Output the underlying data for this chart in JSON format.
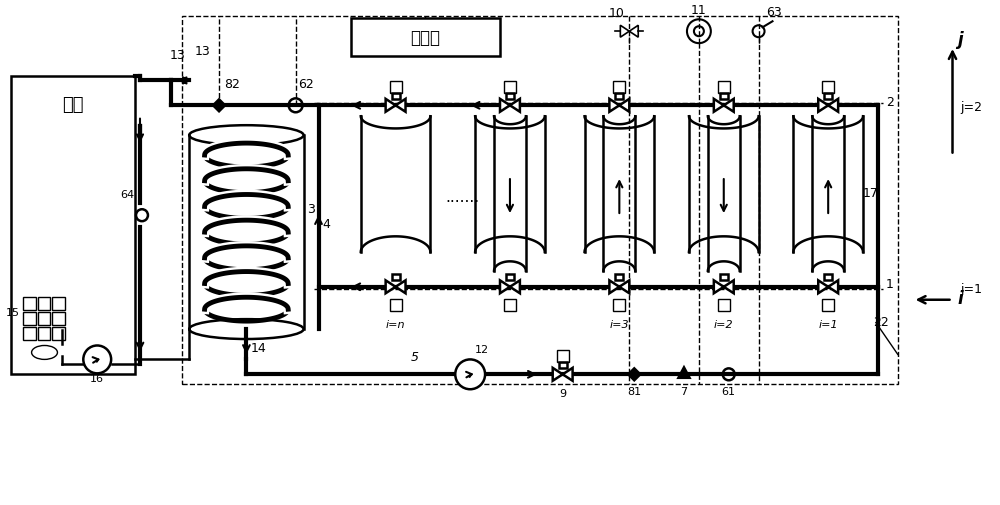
{
  "bg_color": "#ffffff",
  "line_color": "#000000",
  "thick_lw": 3.0,
  "med_lw": 1.8,
  "thin_lw": 1.0,
  "fig_width": 10.0,
  "fig_height": 5.06,
  "labels": {
    "yonghu": "用户",
    "kongzhibu": "控制部",
    "num_1": "1",
    "num_2": "2",
    "num_3": "3",
    "num_4": "4",
    "num_5": "5",
    "num_7": "7",
    "num_9": "9",
    "num_10": "10",
    "num_11": "11",
    "num_12": "12",
    "num_13": "13",
    "num_14": "14",
    "num_15": "15",
    "num_16": "16",
    "num_17": "17",
    "num_22": "22",
    "num_61": "61",
    "num_62": "62",
    "num_63": "63",
    "num_64": "64",
    "num_81": "81",
    "num_82": "82",
    "j_label": "j",
    "i_label": "i",
    "j1": "j=1",
    "j2": "j=2",
    "i1": "i=1",
    "i2": "i=2",
    "i3": "i=3",
    "in_label": "i=n",
    "dots": ".......",
    "num_1_pipe": "1"
  }
}
